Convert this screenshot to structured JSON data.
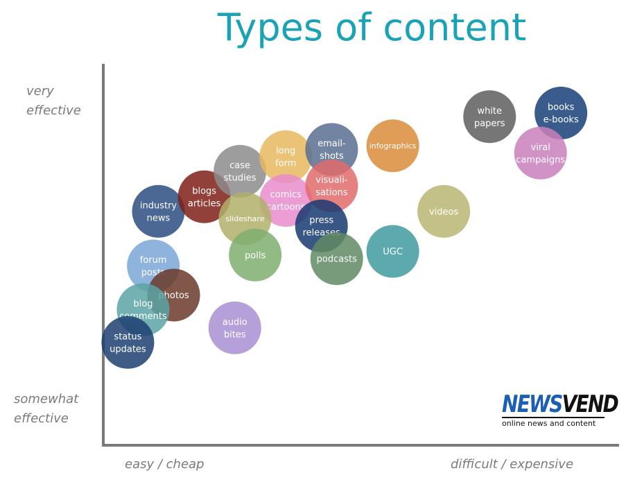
{
  "chart_data": {
    "type": "bubble",
    "title": "Types of content",
    "ylabel_top": "very effective",
    "ylabel_bottom": "somewhat effective",
    "xlabel_left": "easy / cheap",
    "xlabel_right": "difficult / expensive",
    "x_range": [
      0,
      100
    ],
    "y_range": [
      0,
      100
    ],
    "points": [
      {
        "label": [
          "industry",
          "news"
        ],
        "x": 10,
        "y": 61,
        "color": "#2b4c80"
      },
      {
        "label": [
          "blogs",
          "articles"
        ],
        "x": 19,
        "y": 65,
        "color": "#7e2018"
      },
      {
        "label": [
          "case",
          "studies"
        ],
        "x": 26,
        "y": 72,
        "color": "#8c8c8c"
      },
      {
        "label": [
          "long",
          "form"
        ],
        "x": 35,
        "y": 76,
        "color": "#e8b85e"
      },
      {
        "label": [
          "email-",
          "shots"
        ],
        "x": 44,
        "y": 78,
        "color": "#5a6f92"
      },
      {
        "label": [
          "infographics"
        ],
        "x": 56,
        "y": 79,
        "color": "#d98c3a"
      },
      {
        "label": [
          "white",
          "papers"
        ],
        "x": 75,
        "y": 87,
        "color": "#5e5e5e"
      },
      {
        "label": [
          "books",
          "e-books"
        ],
        "x": 89,
        "y": 88,
        "color": "#173f78"
      },
      {
        "label": [
          "viral",
          "campaigns"
        ],
        "x": 85,
        "y": 77,
        "color": "#c97fbb"
      },
      {
        "label": [
          "comics",
          "cartoons"
        ],
        "x": 35,
        "y": 64,
        "color": "#e88ccc"
      },
      {
        "label": [
          "visuali-",
          "sations"
        ],
        "x": 44,
        "y": 68,
        "color": "#e06b6b"
      },
      {
        "label": [
          "slideshare"
        ],
        "x": 27,
        "y": 59,
        "color": "#b0b06a"
      },
      {
        "label": [
          "press",
          "releases"
        ],
        "x": 42,
        "y": 57,
        "color": "#163a70"
      },
      {
        "label": [
          "videos"
        ],
        "x": 66,
        "y": 61,
        "color": "#b9b673"
      },
      {
        "label": [
          "polls"
        ],
        "x": 29,
        "y": 49,
        "color": "#7fae6e"
      },
      {
        "label": [
          "podcasts"
        ],
        "x": 45,
        "y": 48,
        "color": "#5f8a64"
      },
      {
        "label": [
          "UGC"
        ],
        "x": 56,
        "y": 50,
        "color": "#3f9aa0"
      },
      {
        "label": [
          "forum",
          "posts"
        ],
        "x": 9,
        "y": 46,
        "color": "#7aa7d8"
      },
      {
        "label": [
          "photos"
        ],
        "x": 13,
        "y": 38,
        "color": "#6b3a2a"
      },
      {
        "label": [
          "blog",
          "comments"
        ],
        "x": 7,
        "y": 34,
        "color": "#5aa3a6"
      },
      {
        "label": [
          "audio",
          "bites"
        ],
        "x": 25,
        "y": 29,
        "color": "#a98fd4"
      },
      {
        "label": [
          "status",
          "updates"
        ],
        "x": 4,
        "y": 25,
        "color": "#1c3f70"
      }
    ]
  },
  "logo": {
    "news": "NEWS",
    "vend": "VEND",
    "tagline": "online news and content"
  }
}
